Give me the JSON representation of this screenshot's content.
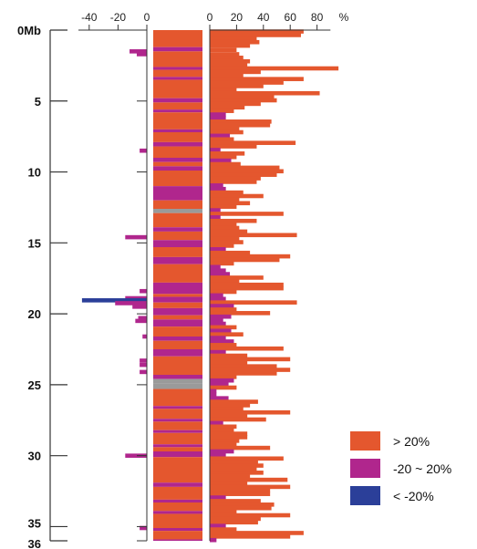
{
  "chart_data": {
    "type": "bar",
    "orientation": "horizontal",
    "colors": {
      "high": "#e4572e",
      "mid": "#b0268d",
      "low": "#2b3f99",
      "gap": "#9a9a9a",
      "axis": "#333333"
    },
    "position_axis": {
      "range_mb": [
        0,
        36
      ],
      "tick_values": [
        0,
        5,
        10,
        15,
        20,
        25,
        30,
        35,
        36
      ],
      "tick_labels": [
        "0Mb",
        "5",
        "10",
        "15",
        "20",
        "25",
        "30",
        "35",
        "36"
      ]
    },
    "negative_axis": {
      "range": [
        -45,
        0
      ],
      "tick_values": [
        -40,
        -20,
        0
      ],
      "tick_labels": [
        "-40",
        "-20",
        "0"
      ]
    },
    "positive_axis": {
      "range": [
        0,
        90
      ],
      "tick_values": [
        0,
        20,
        40,
        60,
        80
      ],
      "tick_labels": [
        "0",
        "20",
        "40",
        "60",
        "80"
      ],
      "unit": "%"
    },
    "legend": [
      {
        "key": "high",
        "label": "> 20%"
      },
      {
        "key": "mid",
        "label": "-20 ~ 20%"
      },
      {
        "key": "low",
        "label": "< -20%"
      }
    ],
    "track_segments": [
      {
        "start": 0.0,
        "end": 1.2,
        "cls": "high"
      },
      {
        "start": 1.2,
        "end": 1.5,
        "cls": "mid"
      },
      {
        "start": 1.5,
        "end": 2.6,
        "cls": "high"
      },
      {
        "start": 2.6,
        "end": 2.8,
        "cls": "mid"
      },
      {
        "start": 2.8,
        "end": 3.3,
        "cls": "high"
      },
      {
        "start": 3.3,
        "end": 3.5,
        "cls": "mid"
      },
      {
        "start": 3.5,
        "end": 4.8,
        "cls": "high"
      },
      {
        "start": 4.8,
        "end": 5.1,
        "cls": "mid"
      },
      {
        "start": 5.1,
        "end": 5.6,
        "cls": "high"
      },
      {
        "start": 5.6,
        "end": 5.8,
        "cls": "mid"
      },
      {
        "start": 5.8,
        "end": 7.0,
        "cls": "high"
      },
      {
        "start": 7.0,
        "end": 7.2,
        "cls": "mid"
      },
      {
        "start": 7.2,
        "end": 7.9,
        "cls": "high"
      },
      {
        "start": 7.9,
        "end": 8.2,
        "cls": "mid"
      },
      {
        "start": 8.2,
        "end": 9.0,
        "cls": "high"
      },
      {
        "start": 9.0,
        "end": 9.3,
        "cls": "mid"
      },
      {
        "start": 9.3,
        "end": 9.6,
        "cls": "high"
      },
      {
        "start": 9.6,
        "end": 9.9,
        "cls": "mid"
      },
      {
        "start": 9.9,
        "end": 11.0,
        "cls": "high"
      },
      {
        "start": 11.0,
        "end": 12.0,
        "cls": "mid"
      },
      {
        "start": 12.0,
        "end": 12.6,
        "cls": "high"
      },
      {
        "start": 12.6,
        "end": 12.9,
        "cls": "gap"
      },
      {
        "start": 12.9,
        "end": 13.9,
        "cls": "high"
      },
      {
        "start": 13.9,
        "end": 14.2,
        "cls": "mid"
      },
      {
        "start": 14.2,
        "end": 14.8,
        "cls": "high"
      },
      {
        "start": 14.8,
        "end": 15.3,
        "cls": "mid"
      },
      {
        "start": 15.3,
        "end": 16.0,
        "cls": "high"
      },
      {
        "start": 16.0,
        "end": 16.5,
        "cls": "mid"
      },
      {
        "start": 16.5,
        "end": 17.8,
        "cls": "high"
      },
      {
        "start": 17.8,
        "end": 18.6,
        "cls": "mid"
      },
      {
        "start": 18.6,
        "end": 18.8,
        "cls": "high"
      },
      {
        "start": 18.8,
        "end": 19.2,
        "cls": "mid"
      },
      {
        "start": 19.2,
        "end": 19.6,
        "cls": "high"
      },
      {
        "start": 19.6,
        "end": 20.1,
        "cls": "mid"
      },
      {
        "start": 20.1,
        "end": 20.4,
        "cls": "high"
      },
      {
        "start": 20.4,
        "end": 20.9,
        "cls": "mid"
      },
      {
        "start": 20.9,
        "end": 21.6,
        "cls": "high"
      },
      {
        "start": 21.6,
        "end": 21.9,
        "cls": "mid"
      },
      {
        "start": 21.9,
        "end": 22.5,
        "cls": "high"
      },
      {
        "start": 22.5,
        "end": 23.0,
        "cls": "mid"
      },
      {
        "start": 23.0,
        "end": 24.3,
        "cls": "high"
      },
      {
        "start": 24.3,
        "end": 24.6,
        "cls": "mid"
      },
      {
        "start": 24.6,
        "end": 24.9,
        "cls": "gap"
      },
      {
        "start": 24.9,
        "end": 25.3,
        "cls": "gap"
      },
      {
        "start": 25.3,
        "end": 26.5,
        "cls": "high"
      },
      {
        "start": 26.5,
        "end": 26.7,
        "cls": "mid"
      },
      {
        "start": 26.7,
        "end": 27.4,
        "cls": "high"
      },
      {
        "start": 27.4,
        "end": 27.6,
        "cls": "mid"
      },
      {
        "start": 27.6,
        "end": 28.2,
        "cls": "high"
      },
      {
        "start": 28.2,
        "end": 28.4,
        "cls": "mid"
      },
      {
        "start": 28.4,
        "end": 29.2,
        "cls": "high"
      },
      {
        "start": 29.2,
        "end": 29.4,
        "cls": "mid"
      },
      {
        "start": 29.4,
        "end": 29.7,
        "cls": "high"
      },
      {
        "start": 29.7,
        "end": 30.1,
        "cls": "mid"
      },
      {
        "start": 30.1,
        "end": 31.9,
        "cls": "high"
      },
      {
        "start": 31.9,
        "end": 32.2,
        "cls": "mid"
      },
      {
        "start": 32.2,
        "end": 33.1,
        "cls": "high"
      },
      {
        "start": 33.1,
        "end": 33.3,
        "cls": "mid"
      },
      {
        "start": 33.3,
        "end": 33.9,
        "cls": "high"
      },
      {
        "start": 33.9,
        "end": 34.1,
        "cls": "mid"
      },
      {
        "start": 34.1,
        "end": 35.1,
        "cls": "high"
      },
      {
        "start": 35.1,
        "end": 35.3,
        "cls": "mid"
      },
      {
        "start": 35.3,
        "end": 35.9,
        "cls": "high"
      },
      {
        "start": 35.9,
        "end": 36.0,
        "cls": "mid"
      }
    ],
    "positive_bars": [
      [
        0.1,
        70,
        "high"
      ],
      [
        0.35,
        68,
        "high"
      ],
      [
        0.6,
        35,
        "high"
      ],
      [
        0.85,
        37,
        "high"
      ],
      [
        1.1,
        30,
        "high"
      ],
      [
        1.4,
        20,
        "high"
      ],
      [
        1.7,
        22,
        "high"
      ],
      [
        1.95,
        25,
        "high"
      ],
      [
        2.2,
        30,
        "high"
      ],
      [
        2.45,
        28,
        "high"
      ],
      [
        2.7,
        96,
        "high"
      ],
      [
        2.95,
        38,
        "high"
      ],
      [
        3.2,
        25,
        "high"
      ],
      [
        3.45,
        70,
        "high"
      ],
      [
        3.7,
        55,
        "high"
      ],
      [
        3.95,
        40,
        "high"
      ],
      [
        4.2,
        20,
        "high"
      ],
      [
        4.45,
        82,
        "high"
      ],
      [
        4.7,
        48,
        "high"
      ],
      [
        4.95,
        50,
        "high"
      ],
      [
        5.2,
        38,
        "high"
      ],
      [
        5.45,
        26,
        "high"
      ],
      [
        5.7,
        18,
        "high"
      ],
      [
        5.95,
        12,
        "mid"
      ],
      [
        6.2,
        12,
        "mid"
      ],
      [
        6.45,
        46,
        "high"
      ],
      [
        6.7,
        45,
        "high"
      ],
      [
        6.95,
        22,
        "high"
      ],
      [
        7.2,
        25,
        "high"
      ],
      [
        7.45,
        15,
        "mid"
      ],
      [
        7.7,
        18,
        "high"
      ],
      [
        7.95,
        64,
        "high"
      ],
      [
        8.2,
        35,
        "high"
      ],
      [
        8.45,
        8,
        "mid"
      ],
      [
        8.7,
        26,
        "high"
      ],
      [
        8.95,
        20,
        "high"
      ],
      [
        9.2,
        16,
        "mid"
      ],
      [
        9.45,
        23,
        "high"
      ],
      [
        9.7,
        52,
        "high"
      ],
      [
        9.95,
        55,
        "high"
      ],
      [
        10.2,
        50,
        "high"
      ],
      [
        10.45,
        38,
        "high"
      ],
      [
        10.7,
        35,
        "high"
      ],
      [
        10.95,
        10,
        "mid"
      ],
      [
        11.2,
        12,
        "mid"
      ],
      [
        11.45,
        25,
        "high"
      ],
      [
        11.7,
        40,
        "high"
      ],
      [
        11.95,
        22,
        "high"
      ],
      [
        12.2,
        30,
        "high"
      ],
      [
        12.45,
        20,
        "high"
      ],
      [
        12.7,
        8,
        "mid"
      ],
      [
        12.95,
        55,
        "high"
      ],
      [
        13.2,
        8,
        "mid"
      ],
      [
        13.45,
        35,
        "high"
      ],
      [
        13.7,
        20,
        "high"
      ],
      [
        13.95,
        22,
        "high"
      ],
      [
        14.2,
        28,
        "high"
      ],
      [
        14.45,
        65,
        "high"
      ],
      [
        14.7,
        22,
        "high"
      ],
      [
        14.95,
        25,
        "high"
      ],
      [
        15.2,
        18,
        "high"
      ],
      [
        15.45,
        12,
        "mid"
      ],
      [
        15.7,
        30,
        "high"
      ],
      [
        15.95,
        60,
        "high"
      ],
      [
        16.2,
        52,
        "high"
      ],
      [
        16.45,
        18,
        "high"
      ],
      [
        16.7,
        8,
        "mid"
      ],
      [
        16.95,
        12,
        "mid"
      ],
      [
        17.2,
        15,
        "mid"
      ],
      [
        17.45,
        40,
        "high"
      ],
      [
        17.7,
        22,
        "high"
      ],
      [
        17.95,
        55,
        "high"
      ],
      [
        18.2,
        55,
        "high"
      ],
      [
        18.45,
        20,
        "high"
      ],
      [
        18.7,
        10,
        "mid"
      ],
      [
        18.95,
        12,
        "mid"
      ],
      [
        19.2,
        65,
        "high"
      ],
      [
        19.45,
        18,
        "mid"
      ],
      [
        19.7,
        20,
        "high"
      ],
      [
        19.95,
        45,
        "high"
      ],
      [
        20.2,
        16,
        "mid"
      ],
      [
        20.45,
        10,
        "mid"
      ],
      [
        20.7,
        12,
        "mid"
      ],
      [
        20.95,
        20,
        "high"
      ],
      [
        21.2,
        16,
        "mid"
      ],
      [
        21.45,
        25,
        "high"
      ],
      [
        21.7,
        12,
        "mid"
      ],
      [
        21.95,
        18,
        "mid"
      ],
      [
        22.2,
        20,
        "high"
      ],
      [
        22.45,
        55,
        "high"
      ],
      [
        22.7,
        12,
        "mid"
      ],
      [
        22.95,
        28,
        "high"
      ],
      [
        23.2,
        60,
        "high"
      ],
      [
        23.45,
        28,
        "high"
      ],
      [
        23.7,
        50,
        "high"
      ],
      [
        23.95,
        60,
        "high"
      ],
      [
        24.2,
        50,
        "high"
      ],
      [
        24.45,
        20,
        "high"
      ],
      [
        24.7,
        18,
        "mid"
      ],
      [
        24.95,
        14,
        "mid"
      ],
      [
        25.2,
        20,
        "high"
      ],
      [
        25.45,
        5,
        "mid"
      ],
      [
        25.7,
        5,
        "mid"
      ],
      [
        25.95,
        14,
        "mid"
      ],
      [
        26.2,
        36,
        "high"
      ],
      [
        26.45,
        30,
        "high"
      ],
      [
        26.7,
        25,
        "high"
      ],
      [
        26.95,
        60,
        "high"
      ],
      [
        27.2,
        28,
        "high"
      ],
      [
        27.45,
        42,
        "high"
      ],
      [
        27.7,
        10,
        "mid"
      ],
      [
        27.95,
        20,
        "high"
      ],
      [
        28.2,
        18,
        "high"
      ],
      [
        28.45,
        28,
        "high"
      ],
      [
        28.7,
        28,
        "high"
      ],
      [
        28.95,
        22,
        "high"
      ],
      [
        29.2,
        20,
        "high"
      ],
      [
        29.45,
        45,
        "high"
      ],
      [
        29.7,
        18,
        "mid"
      ],
      [
        29.95,
        12,
        "mid"
      ],
      [
        30.2,
        55,
        "high"
      ],
      [
        30.45,
        36,
        "high"
      ],
      [
        30.7,
        40,
        "high"
      ],
      [
        30.95,
        35,
        "high"
      ],
      [
        31.2,
        40,
        "high"
      ],
      [
        31.45,
        30,
        "high"
      ],
      [
        31.7,
        58,
        "high"
      ],
      [
        31.95,
        28,
        "high"
      ],
      [
        32.2,
        60,
        "high"
      ],
      [
        32.45,
        45,
        "high"
      ],
      [
        32.7,
        45,
        "high"
      ],
      [
        32.95,
        12,
        "mid"
      ],
      [
        33.2,
        38,
        "high"
      ],
      [
        33.45,
        48,
        "high"
      ],
      [
        33.7,
        46,
        "high"
      ],
      [
        33.95,
        20,
        "high"
      ],
      [
        34.2,
        60,
        "high"
      ],
      [
        34.45,
        38,
        "high"
      ],
      [
        34.7,
        36,
        "high"
      ],
      [
        34.95,
        12,
        "mid"
      ],
      [
        35.2,
        20,
        "high"
      ],
      [
        35.45,
        70,
        "high"
      ],
      [
        35.7,
        60,
        "high"
      ],
      [
        35.95,
        5,
        "mid"
      ]
    ],
    "negative_bars": [
      [
        1.5,
        -12,
        "mid"
      ],
      [
        1.7,
        -7,
        "mid"
      ],
      [
        8.5,
        -5,
        "mid"
      ],
      [
        14.6,
        -15,
        "mid"
      ],
      [
        18.4,
        -5,
        "mid"
      ],
      [
        18.9,
        -15,
        "mid"
      ],
      [
        19.05,
        -45,
        "low"
      ],
      [
        19.25,
        -22,
        "mid"
      ],
      [
        19.5,
        -10,
        "mid"
      ],
      [
        20.3,
        -6,
        "mid"
      ],
      [
        20.5,
        -8,
        "mid"
      ],
      [
        21.6,
        -3,
        "mid"
      ],
      [
        23.3,
        -5,
        "mid"
      ],
      [
        23.6,
        -5,
        "mid"
      ],
      [
        24.1,
        -5,
        "mid"
      ],
      [
        30.0,
        -15,
        "mid"
      ],
      [
        35.1,
        -5,
        "mid"
      ]
    ]
  }
}
